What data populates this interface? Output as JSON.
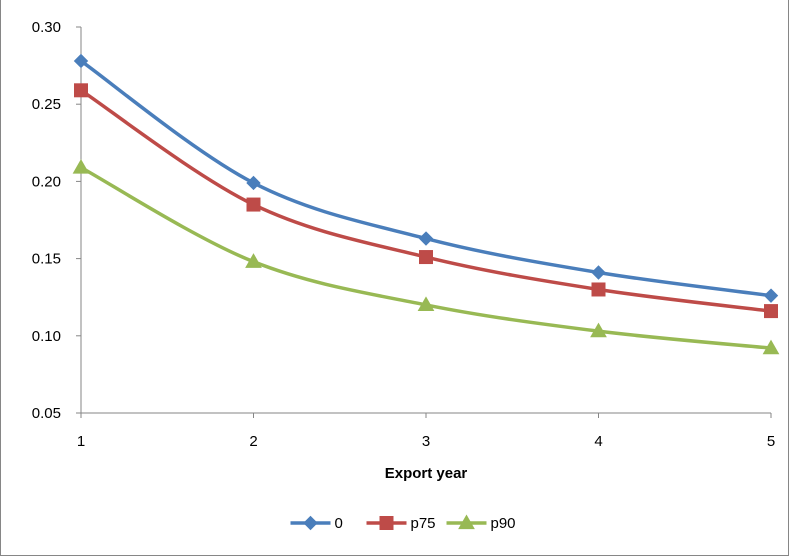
{
  "chart_data": {
    "type": "line",
    "x": [
      1,
      2,
      3,
      4,
      5
    ],
    "x_tick_labels": [
      "1",
      "2",
      "3",
      "4",
      "5"
    ],
    "y_tick_labels": [
      "0.05",
      "0.10",
      "0.15",
      "0.20",
      "0.25",
      "0.30"
    ],
    "xlabel": "Export year",
    "ylabel": "",
    "ylim": [
      0.05,
      0.3
    ],
    "xlim": [
      1,
      5
    ],
    "grid": false,
    "legend_position": "bottom",
    "smooth": true,
    "series": [
      {
        "name": "0",
        "values": [
          0.278,
          0.199,
          0.163,
          0.141,
          0.126
        ],
        "color": "#4a7ebb",
        "marker": "diamond"
      },
      {
        "name": "p75",
        "values": [
          0.259,
          0.185,
          0.151,
          0.13,
          0.116
        ],
        "color": "#be4b48",
        "marker": "square"
      },
      {
        "name": "p90",
        "values": [
          0.209,
          0.148,
          0.12,
          0.103,
          0.092
        ],
        "color": "#98b954",
        "marker": "triangle"
      }
    ]
  }
}
